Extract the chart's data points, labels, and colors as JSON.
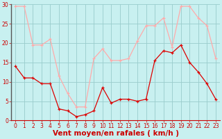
{
  "x": [
    0,
    1,
    2,
    3,
    4,
    5,
    6,
    7,
    8,
    9,
    10,
    11,
    12,
    13,
    14,
    15,
    16,
    17,
    18,
    19,
    20,
    21,
    22,
    23
  ],
  "vent_moyen": [
    14,
    11,
    11,
    9.5,
    9.5,
    3,
    2.5,
    1,
    1.5,
    2.5,
    8.5,
    4.5,
    5.5,
    5.5,
    5,
    5.5,
    15.5,
    18,
    17.5,
    19.5,
    15,
    12.5,
    9.5,
    5.5
  ],
  "vent_rafales": [
    29.5,
    29.5,
    19.5,
    19.5,
    21,
    11.5,
    7,
    3.5,
    3.5,
    16,
    18.5,
    15.5,
    15.5,
    16,
    20.5,
    24.5,
    24.5,
    26.5,
    19,
    29.5,
    29.5,
    26.5,
    24.5,
    16
  ],
  "color_moyen": "#dd0000",
  "color_rafales": "#ffaaaa",
  "bg_color": "#c8f0f0",
  "grid_color": "#99cccc",
  "xlabel": "Vent moyen/en rafales ( km/h )",
  "xlabel_color": "#cc0000",
  "xlabel_fontsize": 7.5,
  "ylim": [
    0,
    30
  ],
  "xlim": [
    -0.5,
    23.5
  ],
  "yticks": [
    0,
    5,
    10,
    15,
    20,
    25,
    30
  ],
  "xticks": [
    0,
    1,
    2,
    3,
    4,
    5,
    6,
    7,
    8,
    9,
    10,
    11,
    12,
    13,
    14,
    15,
    16,
    17,
    18,
    19,
    20,
    21,
    22,
    23
  ],
  "tick_color": "#cc0000",
  "tick_fontsize": 5.5
}
